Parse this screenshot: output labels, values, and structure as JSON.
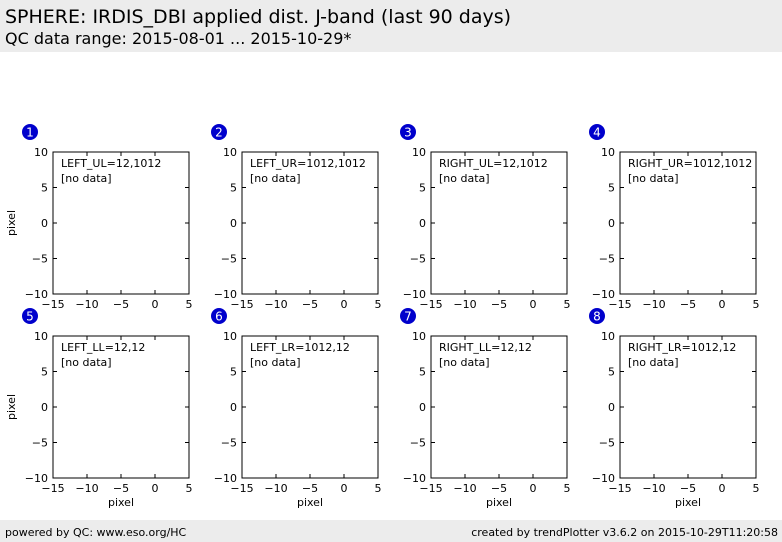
{
  "header": {
    "title": "SPHERE: IRDIS_DBI applied dist. J-band (last 90 days)",
    "subtitle": "QC data range: 2015-08-01 ... 2015-10-29*"
  },
  "footer": {
    "left": "powered by QC: www.eso.org/HC",
    "right": "created by trendPlotter v3.6.2 on 2015-10-29T11:20:58"
  },
  "colors": {
    "badge": "#0000cc",
    "header_bg": "#ececec"
  },
  "chart_data": [
    {
      "type": "scatter",
      "panel": "1",
      "label": "LEFT_UL=12,1012",
      "note": "[no data]",
      "xlim": [
        -15,
        5
      ],
      "ylim": [
        -10,
        10
      ],
      "xticks": [
        -15,
        -10,
        -5,
        0,
        5
      ],
      "yticks": [
        10,
        5,
        0,
        -5,
        -10
      ],
      "xlabel": "",
      "ylabel": "pixel",
      "series": []
    },
    {
      "type": "scatter",
      "panel": "2",
      "label": "LEFT_UR=1012,1012",
      "note": "[no data]",
      "xlim": [
        -15,
        5
      ],
      "ylim": [
        -10,
        10
      ],
      "xticks": [
        -15,
        -10,
        -5,
        0,
        5
      ],
      "yticks": [
        10,
        5,
        0,
        -5,
        -10
      ],
      "xlabel": "",
      "ylabel": "",
      "series": []
    },
    {
      "type": "scatter",
      "panel": "3",
      "label": "RIGHT_UL=12,1012",
      "note": "[no data]",
      "xlim": [
        -15,
        5
      ],
      "ylim": [
        -10,
        10
      ],
      "xticks": [
        -15,
        -10,
        -5,
        0,
        5
      ],
      "yticks": [
        10,
        5,
        0,
        -5,
        -10
      ],
      "xlabel": "",
      "ylabel": "",
      "series": []
    },
    {
      "type": "scatter",
      "panel": "4",
      "label": "RIGHT_UR=1012,1012",
      "note": "[no data]",
      "xlim": [
        -15,
        5
      ],
      "ylim": [
        -10,
        10
      ],
      "xticks": [
        -15,
        -10,
        -5,
        0,
        5
      ],
      "yticks": [
        10,
        5,
        0,
        -5,
        -10
      ],
      "xlabel": "",
      "ylabel": "",
      "series": []
    },
    {
      "type": "scatter",
      "panel": "5",
      "label": "LEFT_LL=12,12",
      "note": "[no data]",
      "xlim": [
        -15,
        5
      ],
      "ylim": [
        -10,
        10
      ],
      "xticks": [
        -15,
        -10,
        -5,
        0,
        5
      ],
      "yticks": [
        10,
        5,
        0,
        -5,
        -10
      ],
      "xlabel": "pixel",
      "ylabel": "pixel",
      "series": []
    },
    {
      "type": "scatter",
      "panel": "6",
      "label": "LEFT_LR=1012,12",
      "note": "[no data]",
      "xlim": [
        -15,
        5
      ],
      "ylim": [
        -10,
        10
      ],
      "xticks": [
        -15,
        -10,
        -5,
        0,
        5
      ],
      "yticks": [
        10,
        5,
        0,
        -5,
        -10
      ],
      "xlabel": "pixel",
      "ylabel": "",
      "series": []
    },
    {
      "type": "scatter",
      "panel": "7",
      "label": "RIGHT_LL=12,12",
      "note": "[no data]",
      "xlim": [
        -15,
        5
      ],
      "ylim": [
        -10,
        10
      ],
      "xticks": [
        -15,
        -10,
        -5,
        0,
        5
      ],
      "yticks": [
        10,
        5,
        0,
        -5,
        -10
      ],
      "xlabel": "pixel",
      "ylabel": "",
      "series": []
    },
    {
      "type": "scatter",
      "panel": "8",
      "label": "RIGHT_LR=1012,12",
      "note": "[no data]",
      "xlim": [
        -15,
        5
      ],
      "ylim": [
        -10,
        10
      ],
      "xticks": [
        -15,
        -10,
        -5,
        0,
        5
      ],
      "yticks": [
        10,
        5,
        0,
        -5,
        -10
      ],
      "xlabel": "pixel",
      "ylabel": "",
      "series": []
    }
  ]
}
